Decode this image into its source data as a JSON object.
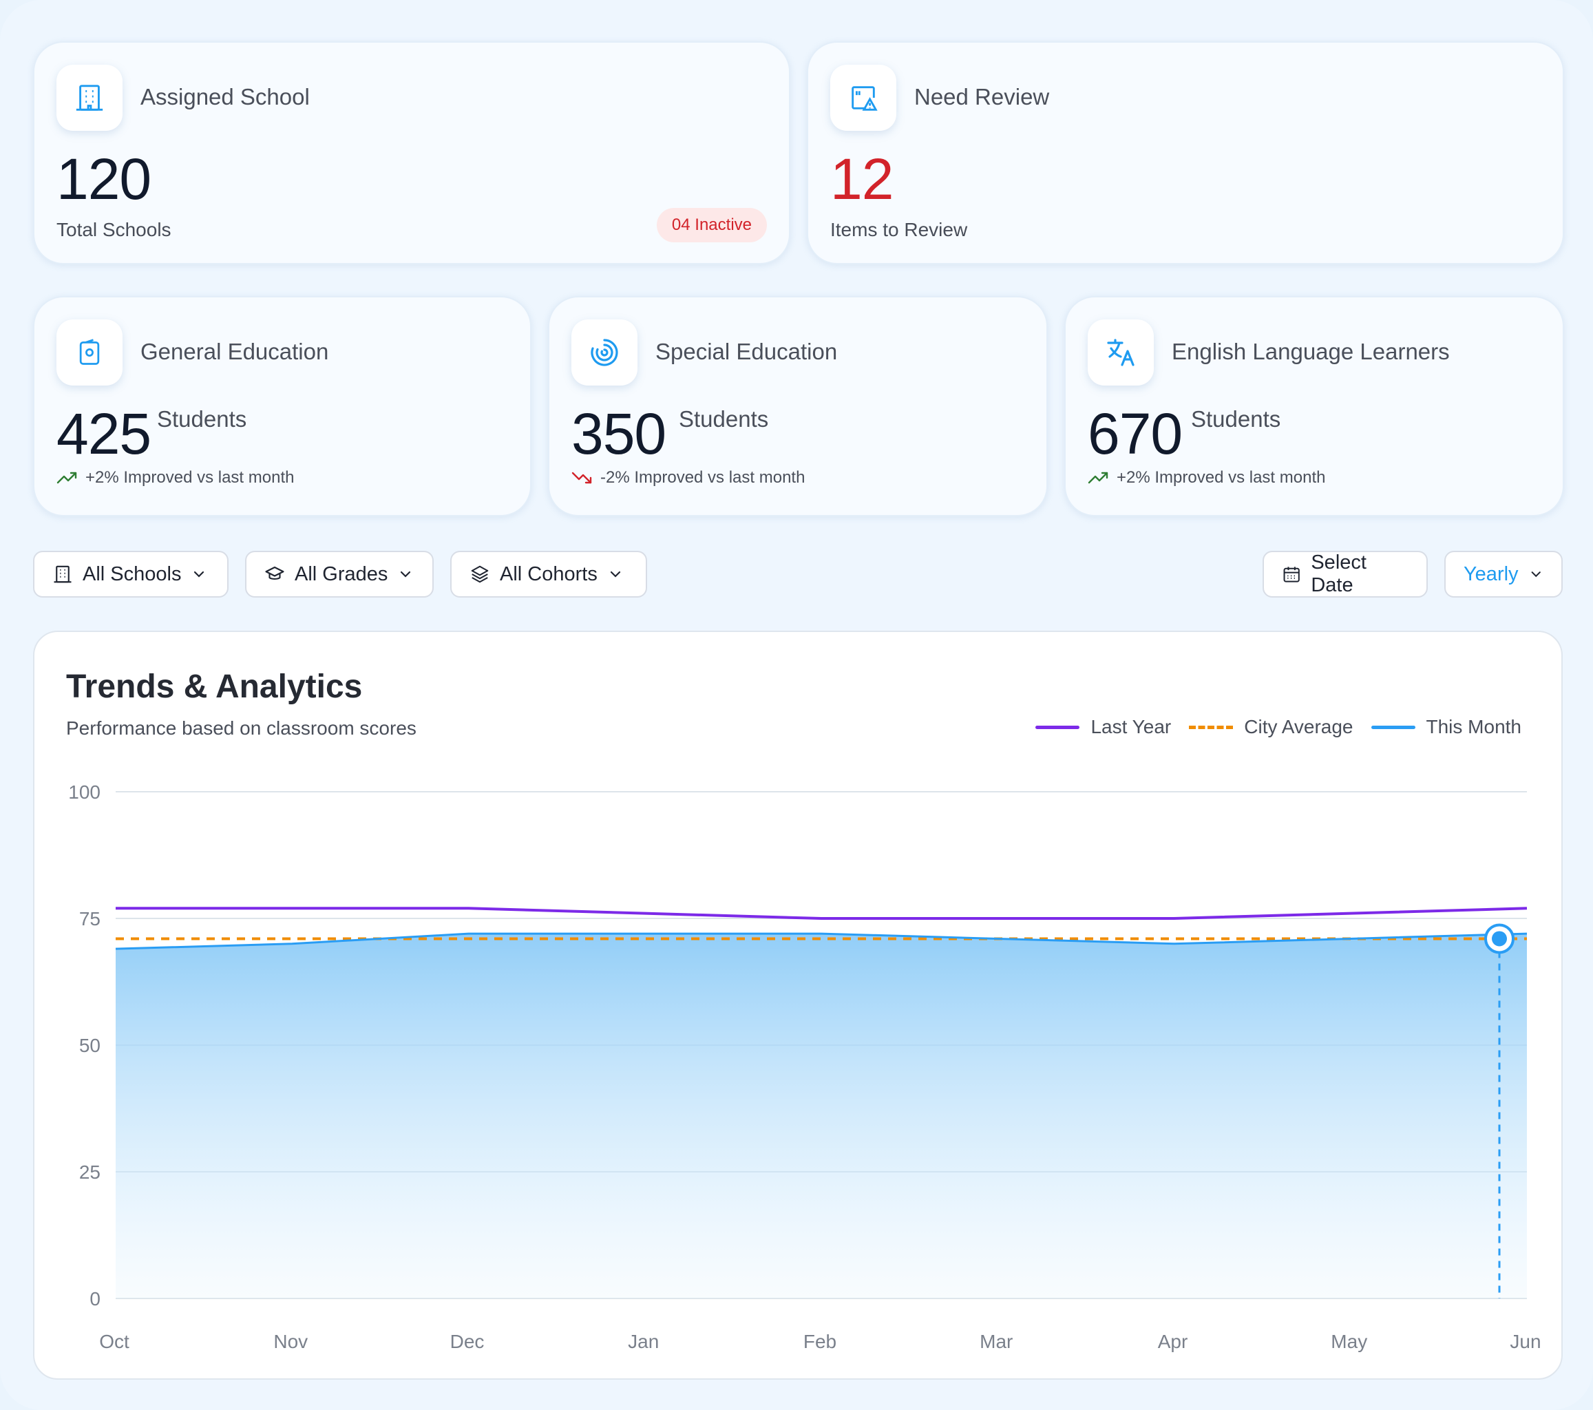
{
  "cards_top": [
    {
      "title": "Assigned School",
      "value": "120",
      "subtitle": "Total Schools",
      "badge": "04 Inactive",
      "icon": "building-icon",
      "value_color": "#111a2c"
    },
    {
      "title": "Need Review",
      "value": "12",
      "subtitle": "Items to Review",
      "icon": "image-warning-icon",
      "value_color": "#d2232a"
    }
  ],
  "cards_stats": [
    {
      "title": "General Education",
      "value": "425",
      "unit": "Students",
      "trend": "+2% Improved vs last month",
      "trend_dir": "up",
      "icon": "badge-card-icon"
    },
    {
      "title": "Special Education",
      "value": "350",
      "unit": "Students",
      "trend": "-2% Improved vs last month",
      "trend_dir": "down",
      "icon": "spinner-circle-icon"
    },
    {
      "title": "English Language Learners",
      "value": "670",
      "unit": "Students",
      "trend": "+2% Improved vs last month",
      "trend_dir": "up",
      "icon": "translate-icon"
    }
  ],
  "filters": {
    "schools": "All Schools",
    "grades": "All Grades",
    "cohorts": "All Cohorts",
    "date": "Select Date",
    "period": "Yearly"
  },
  "colors": {
    "accent": "#1e9bf0",
    "last_year": "#7c2ae8",
    "city_average": "#f08c00",
    "this_month": "#2a9df4",
    "up": "#2e7d32",
    "down": "#d2232a"
  },
  "chart": {
    "title": "Trends & Analytics",
    "subtitle": "Performance based on classroom scores"
  },
  "chart_data": {
    "type": "area",
    "categories": [
      "Oct",
      "Nov",
      "Dec",
      "Jan",
      "Feb",
      "Mar",
      "Apr",
      "May",
      "Jun"
    ],
    "ylim": [
      0,
      100
    ],
    "yticks": [
      0,
      25,
      50,
      75,
      100
    ],
    "series": [
      {
        "name": "Last Year",
        "values": [
          77,
          77,
          77,
          76,
          75,
          75,
          75,
          76,
          77
        ]
      },
      {
        "name": "City Average",
        "values": [
          71,
          71,
          71,
          71,
          71,
          71,
          71,
          71,
          71
        ]
      },
      {
        "name": "This Month",
        "values": [
          69,
          70,
          72,
          72,
          72,
          71,
          70,
          71,
          72
        ]
      }
    ],
    "highlight_index": 8,
    "grid": true,
    "legend_position": "top-right"
  }
}
